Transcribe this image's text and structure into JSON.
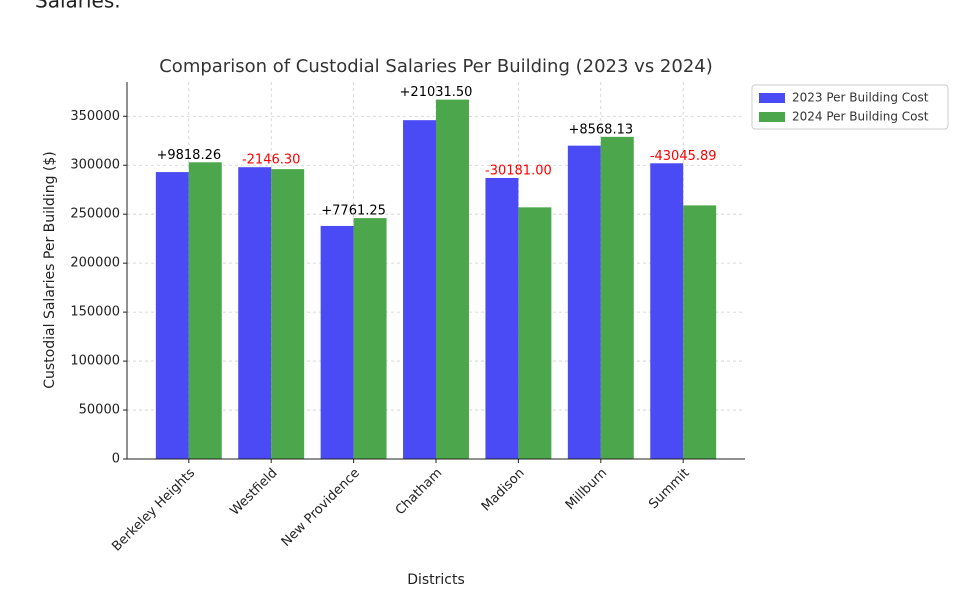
{
  "caption": "Salaries.",
  "chart_data": {
    "type": "bar",
    "title": "Comparison of Custodial Salaries Per Building (2023 vs 2024)",
    "x_label": "Districts",
    "y_label": "Custodial Salaries Per Building ($)",
    "categories": [
      "Berkeley Heights",
      "Westfield",
      "New Providence",
      "Chatham",
      "Madison",
      "Millburn",
      "Summit"
    ],
    "series": [
      {
        "name": "2023 Per Building Cost",
        "color": "#4b4bf6",
        "values": [
          293000,
          298000,
          238000,
          346000,
          287000,
          320000,
          302000
        ]
      },
      {
        "name": "2024 Per Building Cost",
        "color": "#4ca64c",
        "values": [
          303000,
          296000,
          246000,
          367000,
          257000,
          329000,
          259000
        ]
      }
    ],
    "annotations": [
      {
        "text": "+9818.26",
        "color": "#000000"
      },
      {
        "text": "-2146.30",
        "color": "#ff0000"
      },
      {
        "text": "+7761.25",
        "color": "#000000"
      },
      {
        "text": "+21031.50",
        "color": "#000000"
      },
      {
        "text": "-30181.00",
        "color": "#ff0000"
      },
      {
        "text": "+8568.13",
        "color": "#000000"
      },
      {
        "text": "-43045.89",
        "color": "#ff0000"
      }
    ],
    "ylim": [
      0,
      385000
    ],
    "yticks": [
      0,
      50000,
      100000,
      150000,
      200000,
      250000,
      300000,
      350000
    ],
    "grid": true,
    "legend": "upper-right-outside"
  }
}
